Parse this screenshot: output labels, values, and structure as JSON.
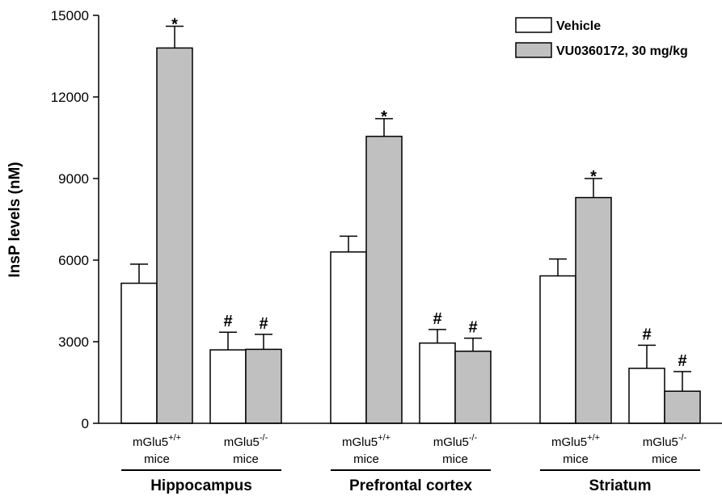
{
  "chart_data": {
    "type": "bar",
    "ylabel": "InsP levels (nM)",
    "ylim": [
      0,
      15000
    ],
    "yticks": [
      0,
      3000,
      6000,
      9000,
      12000,
      15000
    ],
    "groups": [
      {
        "label": "Hippocampus",
        "subgroups": [
          {
            "label_base": "mGlu5",
            "label_sup": "+/+",
            "label_line2": "mice",
            "vehicle": 5150,
            "vehicle_err": 700,
            "vehicle_mark": "",
            "drug": 13800,
            "drug_err": 800,
            "drug_mark": "*"
          },
          {
            "label_base": "mGlu5",
            "label_sup": "-/-",
            "label_line2": "mice",
            "vehicle": 2700,
            "vehicle_err": 650,
            "vehicle_mark": "#",
            "drug": 2720,
            "drug_err": 550,
            "drug_mark": "#"
          }
        ]
      },
      {
        "label": "Prefrontal cortex",
        "subgroups": [
          {
            "label_base": "mGlu5",
            "label_sup": "+/+",
            "label_line2": "mice",
            "vehicle": 6300,
            "vehicle_err": 580,
            "vehicle_mark": "",
            "drug": 10550,
            "drug_err": 650,
            "drug_mark": "*"
          },
          {
            "label_base": "mGlu5",
            "label_sup": "-/-",
            "label_line2": "mice",
            "vehicle": 2950,
            "vehicle_err": 500,
            "vehicle_mark": "#",
            "drug": 2650,
            "drug_err": 480,
            "drug_mark": "#"
          }
        ]
      },
      {
        "label": "Striatum",
        "subgroups": [
          {
            "label_base": "mGlu5",
            "label_sup": "+/+",
            "label_line2": "mice",
            "vehicle": 5420,
            "vehicle_err": 620,
            "vehicle_mark": "",
            "drug": 8300,
            "drug_err": 700,
            "drug_mark": "*"
          },
          {
            "label_base": "mGlu5",
            "label_sup": "-/-",
            "label_line2": "mice",
            "vehicle": 2020,
            "vehicle_err": 850,
            "vehicle_mark": "#",
            "drug": 1180,
            "drug_err": 720,
            "drug_mark": "#"
          }
        ]
      }
    ],
    "series": [
      {
        "name": "Vehicle",
        "color": "#ffffff"
      },
      {
        "name": "VU0360172, 30 mg/kg",
        "color": "#c0c0c0"
      }
    ],
    "legend_position": "top-right",
    "grid": false
  }
}
